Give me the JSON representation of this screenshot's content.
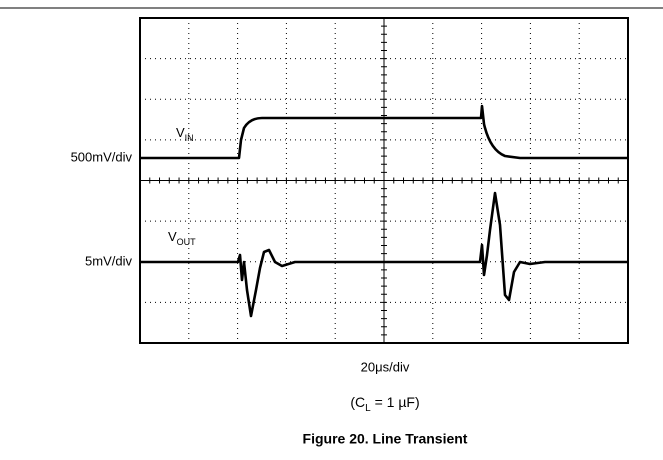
{
  "scope": {
    "vin_scale": "500mV/div",
    "vout_scale": "5mV/div",
    "vin_label": {
      "main": "V",
      "sub": "IN"
    },
    "vout_label": {
      "main": "V",
      "sub": "OUT"
    },
    "time_scale": "20μs/div"
  },
  "caption": {
    "condition": {
      "open": "(C",
      "sub": "L",
      "rest": " = 1 µF)"
    },
    "figure_title": "Figure 20. Line Transient"
  }
}
